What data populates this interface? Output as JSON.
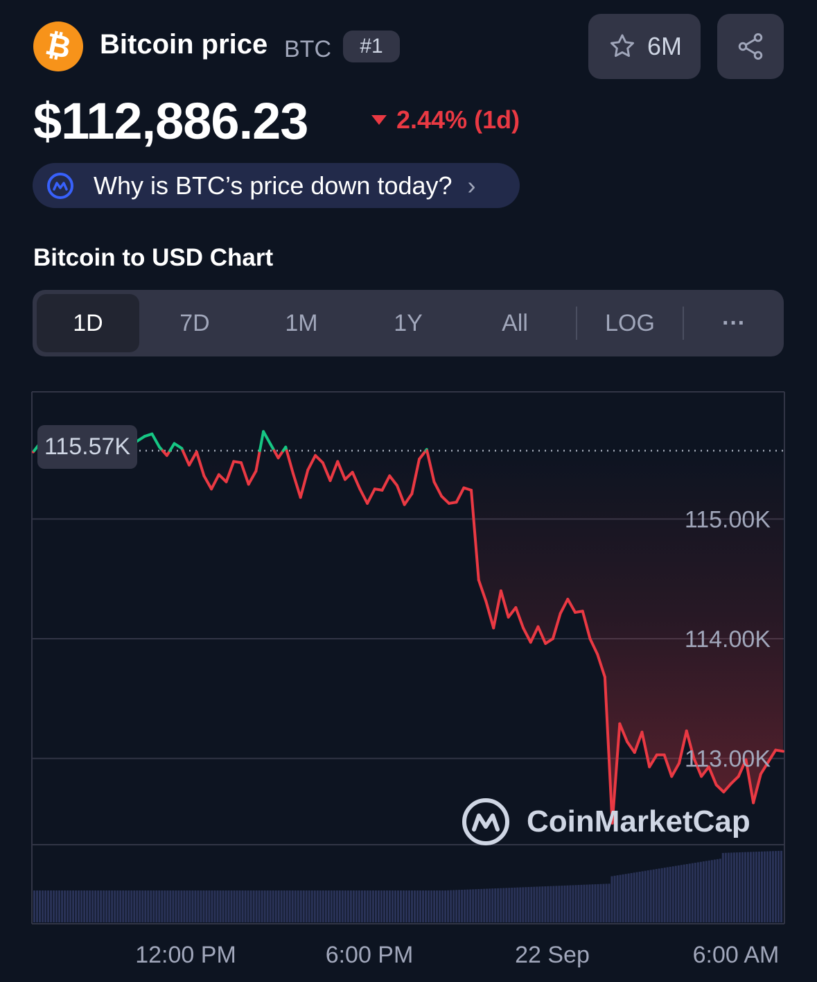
{
  "header": {
    "coin_icon": "bitcoin-icon",
    "coin_glyph": "₿",
    "title": "Bitcoin price",
    "symbol": "BTC",
    "rank": "#1",
    "watchlist_count": "6M",
    "star_icon": "star-icon",
    "share_icon": "share-icon"
  },
  "price": {
    "value": "$112,886.23",
    "change": "2.44% (1d)",
    "direction": "down"
  },
  "why_banner": {
    "icon": "coinmarketcap-ai-icon",
    "text": "Why is BTC’s price down today?",
    "chevron": "›"
  },
  "chart_section": {
    "title": "Bitcoin to USD Chart",
    "tabs": [
      {
        "label": "1D",
        "active": true
      },
      {
        "label": "7D",
        "active": false
      },
      {
        "label": "1M",
        "active": false
      },
      {
        "label": "1Y",
        "active": false
      },
      {
        "label": "All",
        "active": false
      },
      {
        "label": "LOG",
        "active": false
      },
      {
        "label": "···",
        "active": false
      }
    ],
    "reference_label": "115.57K",
    "watermark": "CoinMarketCap"
  },
  "colors": {
    "up": "#16c784",
    "down": "#ea3943",
    "background": "#0d1421",
    "volume": "#2a3358"
  },
  "chart_data": {
    "type": "line",
    "title": "",
    "ylabel": "",
    "xlabel": "",
    "ylim": [
      112280,
      116050
    ],
    "y_ticks": [
      "115.00K",
      "114.00K",
      "113.00K"
    ],
    "y_tick_values": [
      115000,
      114000,
      113000
    ],
    "x_ticks": [
      "12:00 PM",
      "6:00 PM",
      "22 Sep",
      "6:00 AM"
    ],
    "reference_line": 115570,
    "grid": true,
    "series": [
      {
        "values": [
          115560,
          115640,
          115690,
          115690,
          115750,
          115710,
          115670,
          115740,
          115750,
          115680,
          115700,
          115690,
          115740,
          115700,
          115650,
          115690,
          115710,
          115600,
          115530,
          115630,
          115590,
          115450,
          115560,
          115360,
          115250,
          115370,
          115310,
          115480,
          115470,
          115290,
          115400,
          115730,
          115620,
          115510,
          115600,
          115380,
          115180,
          115410,
          115530,
          115470,
          115320,
          115480,
          115330,
          115390,
          115250,
          115130,
          115250,
          115240,
          115360,
          115280,
          115120,
          115210,
          115500,
          115580,
          115310,
          115190,
          115130,
          115140,
          115260,
          115240,
          114490,
          114310,
          114090,
          114400,
          114180,
          114260,
          114090,
          113970,
          114100,
          113960,
          114000,
          114210,
          114330,
          114220,
          114230,
          114000,
          113870,
          113680,
          112460,
          113290,
          113140,
          113050,
          113220,
          112930,
          113030,
          113030,
          112850,
          112960,
          113230,
          113000,
          112850,
          112930,
          112780,
          112720,
          112790,
          112850,
          112990,
          112630,
          112870,
          112970,
          113070,
          113060
        ]
      }
    ]
  }
}
